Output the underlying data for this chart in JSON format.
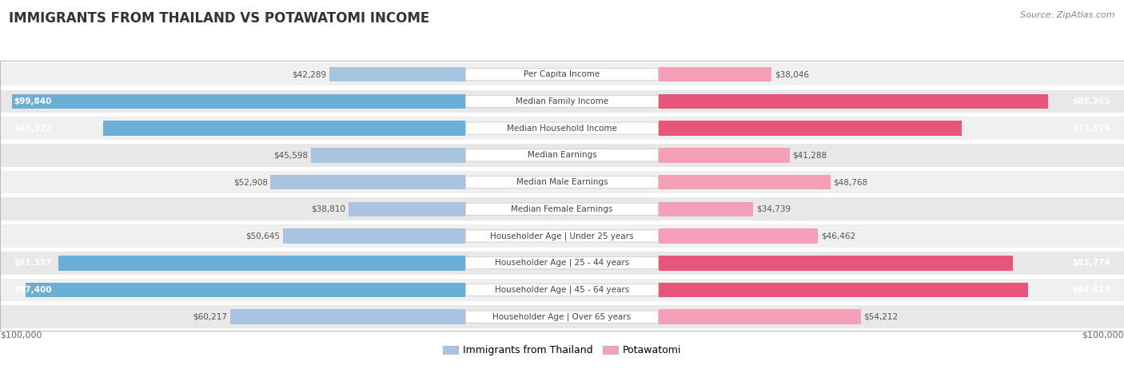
{
  "title": "IMMIGRANTS FROM THAILAND VS POTAWATOMI INCOME",
  "source": "Source: ZipAtlas.com",
  "categories": [
    "Per Capita Income",
    "Median Family Income",
    "Median Household Income",
    "Median Earnings",
    "Median Male Earnings",
    "Median Female Earnings",
    "Householder Age | Under 25 years",
    "Householder Age | 25 - 44 years",
    "Householder Age | 45 - 64 years",
    "Householder Age | Over 65 years"
  ],
  "thailand_values": [
    42289,
    99840,
    83327,
    45598,
    52908,
    38810,
    50645,
    91337,
    97400,
    60217
  ],
  "potawatomi_values": [
    38046,
    88265,
    72576,
    41288,
    48768,
    34739,
    46462,
    81774,
    84613,
    54212
  ],
  "thailand_color_light": "#a8c4e0",
  "thailand_color_dark": "#6baed6",
  "potawatomi_color_light": "#f4a0b8",
  "potawatomi_color_dark": "#e8557a",
  "max_value": 100000,
  "background_color": "#ffffff",
  "row_colors": [
    "#f0f0f0",
    "#e8e8e8"
  ],
  "label_fontsize": 7.5,
  "value_fontsize": 7.5,
  "title_fontsize": 12,
  "source_fontsize": 8,
  "legend_fontsize": 9,
  "inside_label_threshold": 70000,
  "inside_label_threshold_pota": 62000
}
